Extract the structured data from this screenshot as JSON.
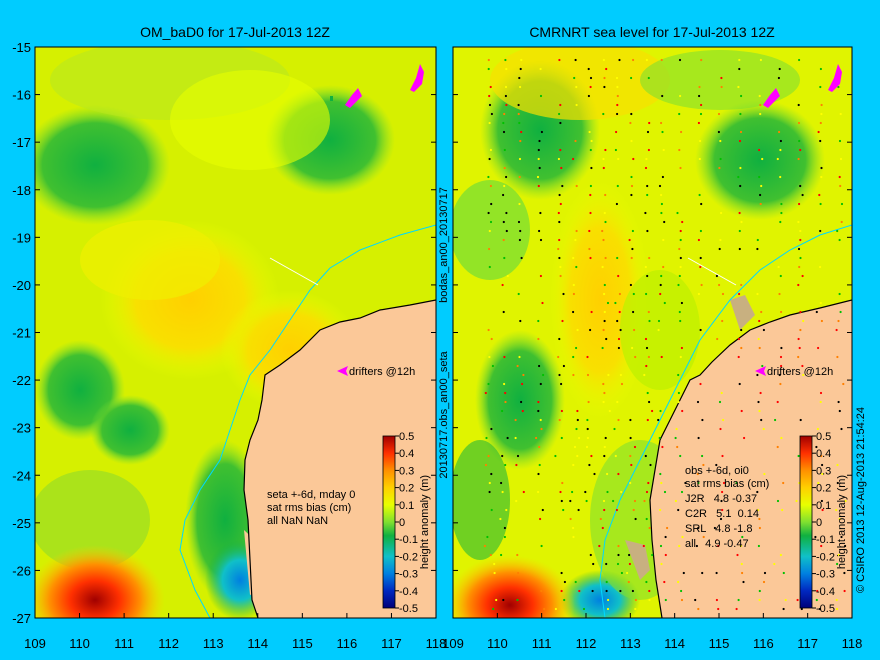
{
  "chart_data": [
    {
      "type": "heatmap",
      "title": "OM_baD0 for 17-Jul-2013 12Z",
      "xlim": [
        109,
        118
      ],
      "ylim": [
        -27,
        -15
      ],
      "x_ticks": [
        "109",
        "110",
        "111",
        "112",
        "113",
        "114",
        "115",
        "116",
        "117",
        "118"
      ],
      "y_ticks": [
        "-15",
        "-16",
        "-17",
        "-18",
        "-19",
        "-20",
        "-21",
        "-22",
        "-23",
        "-24",
        "-25",
        "-26",
        "-27"
      ],
      "side_label": "bodas_an00_20130717",
      "drifter_label": "drifters @12h",
      "colorbar": {
        "label": "height anomaly (m)",
        "ticks": [
          "0.5",
          "0.4",
          "0.3",
          "0.2",
          "0.1",
          "0",
          "-0.1",
          "-0.2",
          "-0.3",
          "-0.4",
          "-0.5"
        ],
        "range": [
          -0.5,
          0.5
        ]
      },
      "stats_lines": [
        "seta +-6d, mday 0",
        "sat rms bias (cm)",
        "all NaN NaN"
      ]
    },
    {
      "type": "heatmap",
      "title": "CMRNRT sea level  for 17-Jul-2013 12Z",
      "xlim": [
        109,
        118
      ],
      "ylim": [
        -27,
        -15
      ],
      "x_ticks": [
        "109",
        "110",
        "111",
        "112",
        "113",
        "114",
        "115",
        "116",
        "117",
        "118"
      ],
      "y_ticks": [
        "-15",
        "-16",
        "-17",
        "-18",
        "-19",
        "-20",
        "-21",
        "-22",
        "-23",
        "-24",
        "-25",
        "-26",
        "-27"
      ],
      "side_label": "20130717.obs_an00_seta",
      "drifter_label": "drifters @12h",
      "colorbar": {
        "label": "height anomaly (m)",
        "ticks": [
          "0.5",
          "0.4",
          "0.3",
          "0.2",
          "0.1",
          "0",
          "-0.1",
          "-0.2",
          "-0.3",
          "-0.4",
          "-0.5"
        ],
        "range": [
          -0.5,
          0.5
        ]
      },
      "stats_lines": [
        "obs +-6d, oi0",
        "sat rms bias (cm)",
        "J2R   4.8 -0.37",
        "C2R   5.1  0.14",
        "SRL   4.8 -1.8",
        "all   4.9 -0.47"
      ]
    }
  ],
  "copyright": "© CSIRO 2013  12-Aug-2013 21:54:24",
  "colors": {
    "background": "#00ccff",
    "land": "#fbc898",
    "ramp": [
      "#00007a",
      "#0028c0",
      "#0080e0",
      "#10c0c8",
      "#10b040",
      "#80e030",
      "#e8ff00",
      "#ffd000",
      "#ff9000",
      "#ff3000",
      "#a00000"
    ]
  }
}
